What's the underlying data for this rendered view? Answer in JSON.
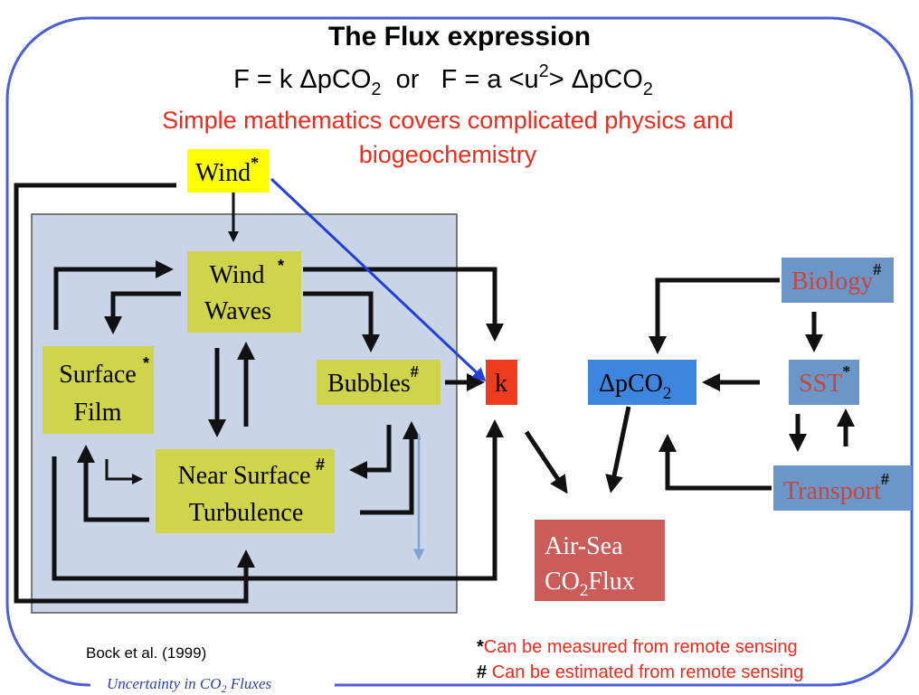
{
  "title": "The Flux expression",
  "equation": {
    "a": "F = k ΔpCO",
    "a_sub": "2",
    "b": "  or   F = a <u",
    "b_sup": "2",
    "c": "> ΔpCO",
    "c_sub": "2"
  },
  "subtitle": [
    "Simple mathematics covers complicated physics and",
    "biogeochemistry"
  ],
  "nodes": {
    "wind": {
      "lines": [
        "Wind"
      ],
      "mark": "*"
    },
    "wind_waves": {
      "lines": [
        "Wind",
        "Waves"
      ],
      "mark": "*"
    },
    "surface_film": {
      "lines": [
        "Surface",
        "Film"
      ],
      "mark": "*"
    },
    "bubbles": {
      "lines": [
        "Bubbles"
      ],
      "mark": "#"
    },
    "turbulence": {
      "lines": [
        "Near Surface",
        "Turbulence"
      ],
      "mark": "#"
    },
    "k": {
      "lines": [
        "k"
      ]
    },
    "dpco2": {
      "text": "ΔpCO",
      "sub": "2"
    },
    "biology": {
      "lines": [
        "Biology"
      ],
      "mark": "#"
    },
    "sst": {
      "lines": [
        "SST"
      ],
      "mark": "*"
    },
    "transport": {
      "lines": [
        "Transport"
      ],
      "mark": "#"
    },
    "flux": {
      "line1": "Air-Sea",
      "line2a": "CO",
      "line2_sub": "2",
      "line2b": "Flux"
    }
  },
  "citation": "Bock et al. (1999)",
  "legend": [
    {
      "symbol": "*",
      "text": "Can be measured from remote sensing"
    },
    {
      "symbol": "#",
      "text": "Can be estimated from remote sensing"
    }
  ],
  "footer": {
    "a": "Uncertainty in CO",
    "sub": "2",
    "b": " Fluxes"
  }
}
